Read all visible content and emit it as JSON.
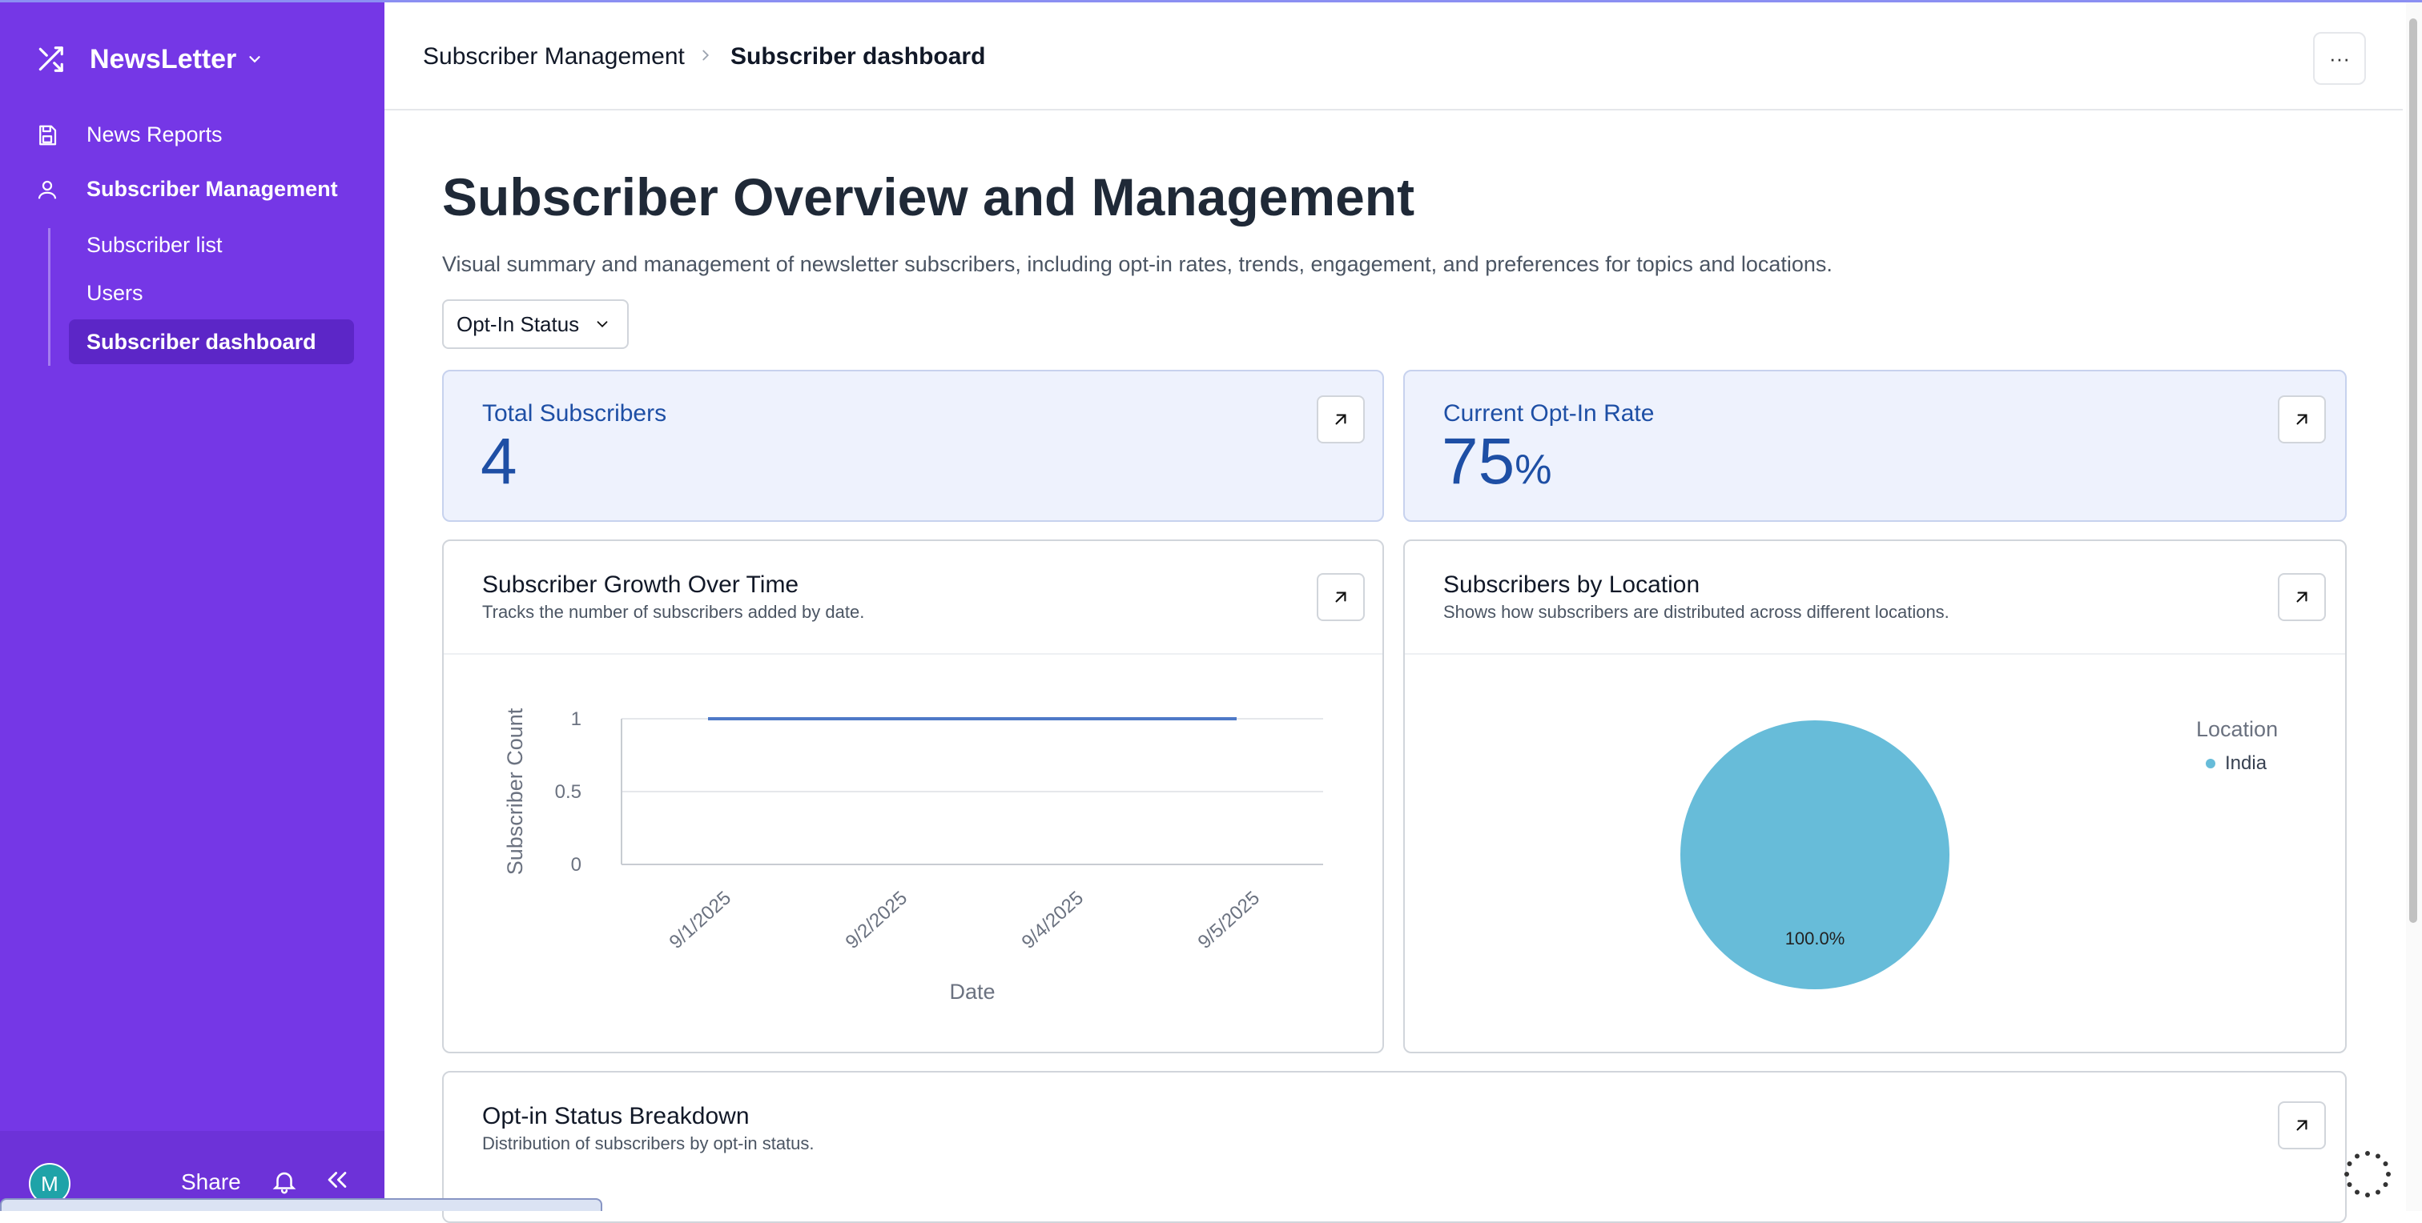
{
  "sidebar": {
    "app_name": "NewsLetter",
    "nav": [
      {
        "label": "News Reports"
      },
      {
        "label": "Subscriber Management"
      }
    ],
    "sub_items": [
      {
        "label": "Subscriber list"
      },
      {
        "label": "Users"
      },
      {
        "label": "Subscriber dashboard"
      }
    ],
    "footer": {
      "avatar_initial": "M",
      "share_label": "Share"
    }
  },
  "header": {
    "breadcrumb_parent": "Subscriber Management",
    "breadcrumb_current": "Subscriber dashboard",
    "more_label": "···"
  },
  "page": {
    "title": "Subscriber Overview and Management",
    "description": "Visual summary and management of newsletter subscribers, including opt-in rates, trends, engagement, and preferences for topics and locations.",
    "filter_label": "Opt-In Status"
  },
  "kpis": [
    {
      "label": "Total Subscribers",
      "value": "4",
      "unit": ""
    },
    {
      "label": "Current Opt-In Rate",
      "value": "75",
      "unit": "%"
    }
  ],
  "cards": {
    "growth": {
      "title": "Subscriber Growth Over Time",
      "subtitle": "Tracks the number of subscribers added by date."
    },
    "location": {
      "title": "Subscribers by Location",
      "subtitle": "Shows how subscribers are distributed across different locations.",
      "legend_title": "Location"
    },
    "optin": {
      "title": "Opt-in Status Breakdown",
      "subtitle": "Distribution of subscribers by opt-in status."
    }
  },
  "colors": {
    "sidebar": "#7537e6",
    "accent_blue": "#1e4fa5",
    "line": "#4e79c7",
    "pie": "#67bcd9"
  },
  "chart_data": [
    {
      "type": "line",
      "title": "Subscriber Growth Over Time",
      "xlabel": "Date",
      "ylabel": "Subscriber Count",
      "x": [
        "9/1/2025",
        "9/2/2025",
        "9/4/2025",
        "9/5/2025"
      ],
      "series": [
        {
          "values": [
            1,
            1,
            1,
            1
          ]
        }
      ],
      "yticks": [
        "1",
        "0.5",
        "0"
      ],
      "ylim": [
        0,
        1
      ],
      "grid": true
    },
    {
      "type": "pie",
      "title": "Subscribers by Location",
      "legend_title": "Location",
      "slices": [
        {
          "label": "India",
          "value": 100.0,
          "display": "100.0%",
          "color": "#67bcd9"
        }
      ],
      "legend_position": "top-right"
    }
  ]
}
